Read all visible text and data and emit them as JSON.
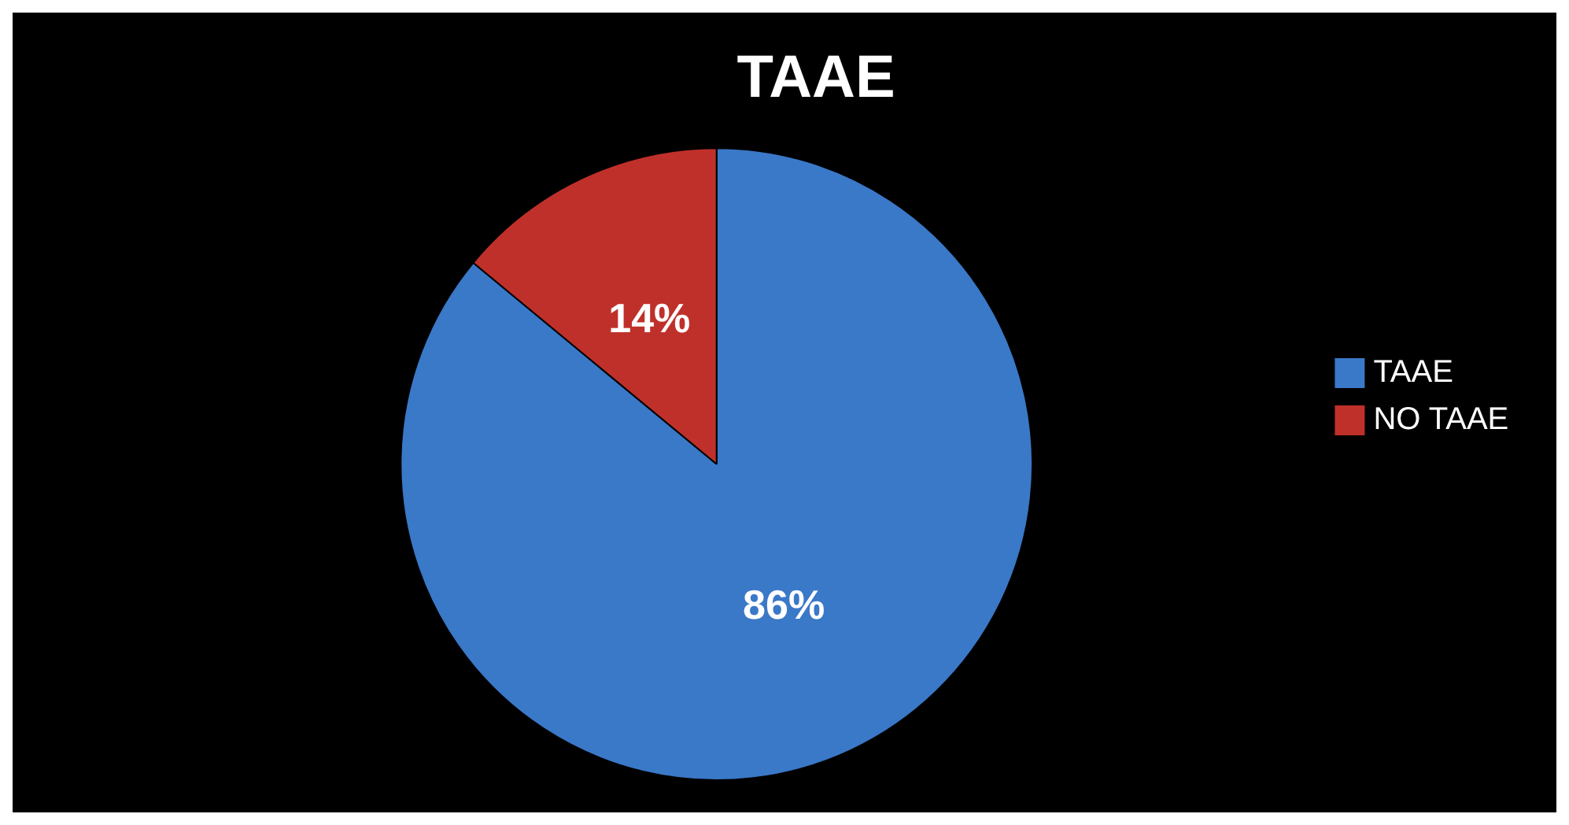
{
  "chart_data": {
    "type": "pie",
    "title": "TAAE",
    "categories": [
      "TAAE",
      "NO TAAE"
    ],
    "values": [
      86,
      14
    ],
    "colors": [
      "#3a78c8",
      "#c0302a"
    ],
    "value_labels": [
      "86%",
      "14%"
    ],
    "legend": "right"
  }
}
